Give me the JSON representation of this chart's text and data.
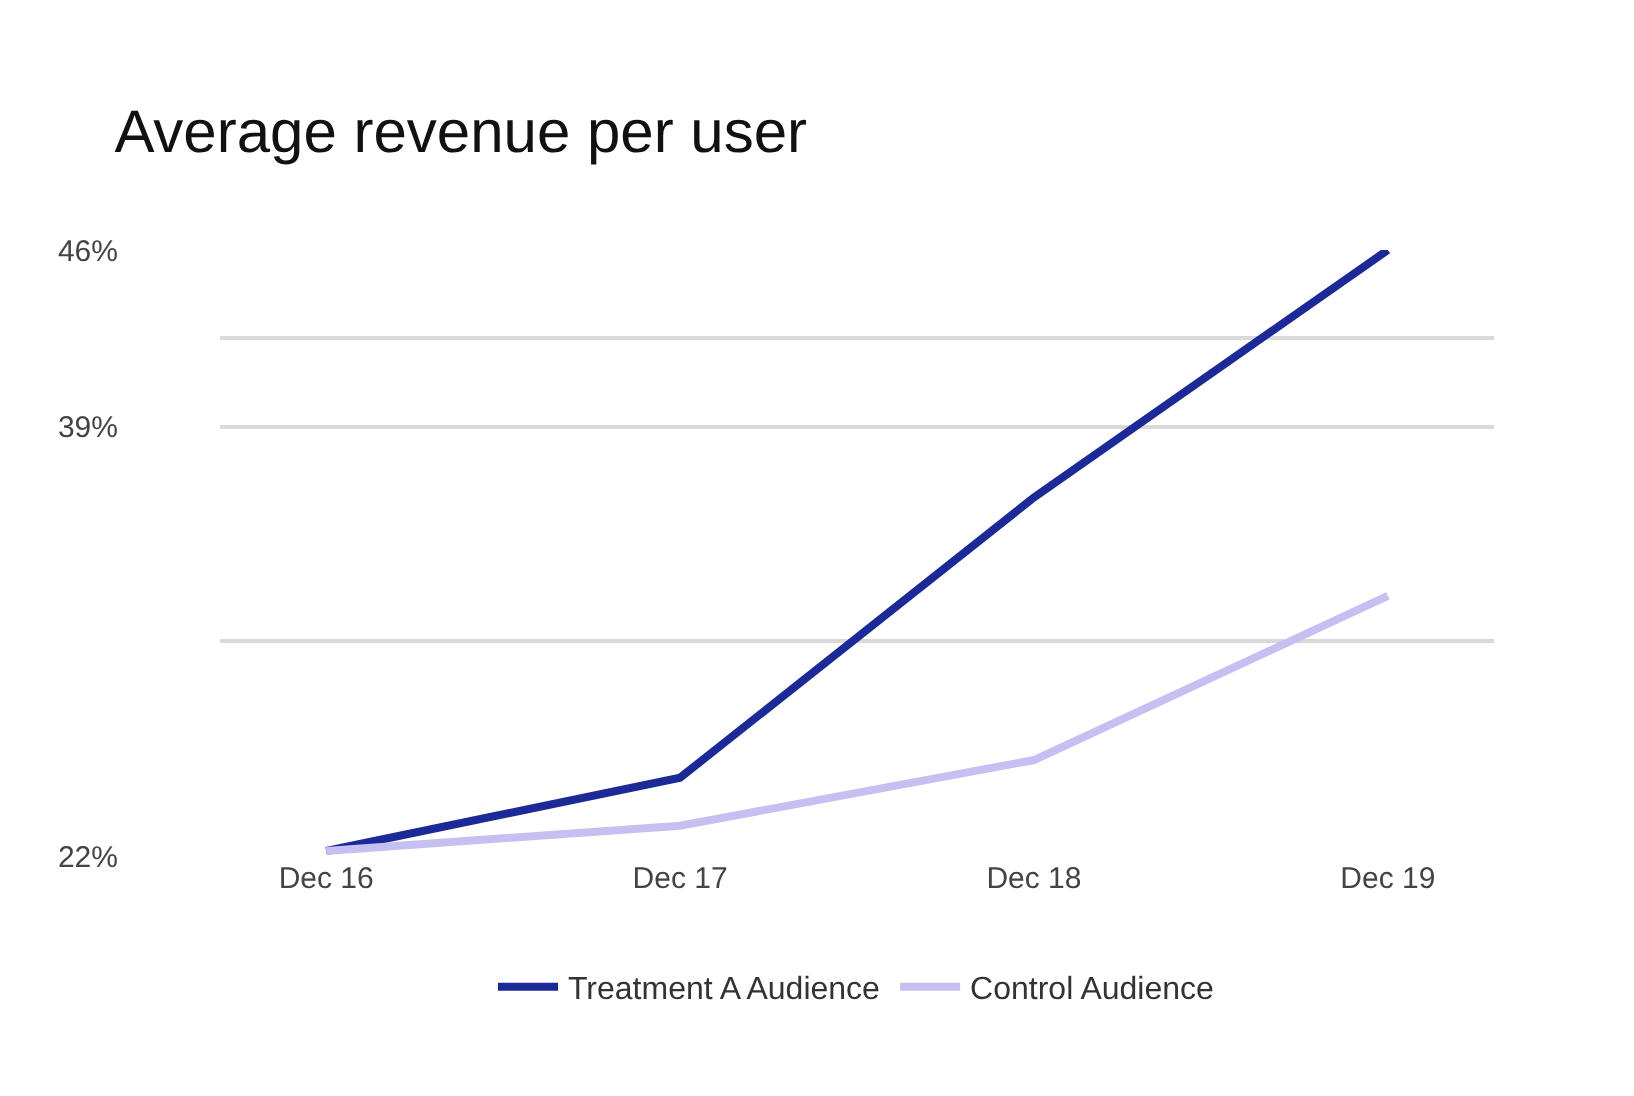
{
  "chart_data": {
    "type": "line",
    "title": "Average revenue per user",
    "categories": [
      "Dec 16",
      "Dec 17",
      "Dec 18",
      "Dec 19"
    ],
    "series": [
      {
        "name": "Treatment A Audience",
        "color": "#1b2a96",
        "values": [
          22.2,
          25.1,
          36.2,
          46
        ]
      },
      {
        "name": "Control Audience",
        "color": "#c6c0f2",
        "values": [
          22.2,
          23.2,
          25.8,
          32.3
        ]
      }
    ],
    "ylim": [
      22,
      46
    ],
    "yticks": [
      {
        "value": 22,
        "label": "22%"
      },
      {
        "value": 30.5,
        "label": null
      },
      {
        "value": 39,
        "label": "39%"
      },
      {
        "value": 42.5,
        "label": null
      },
      {
        "value": 46,
        "label": "46%"
      }
    ],
    "grid": "y",
    "legend": "bottom",
    "marker": "none",
    "line_style": "solid"
  }
}
